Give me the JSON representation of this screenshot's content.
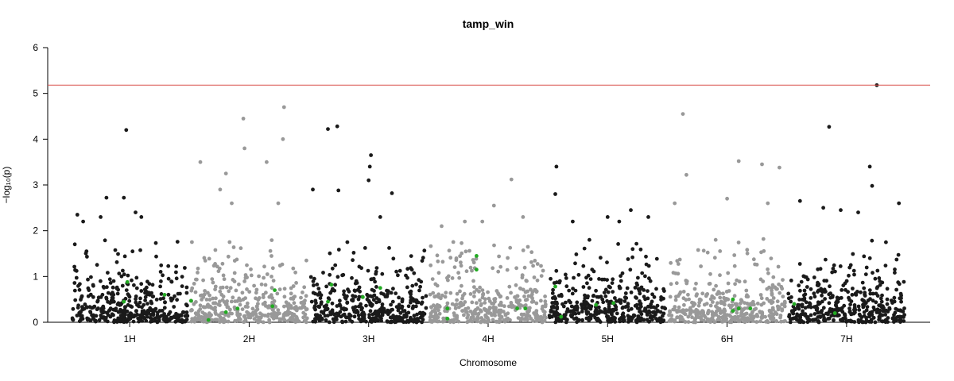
{
  "chart_data": {
    "type": "scatter",
    "title": "tamp_win",
    "xlabel": "Chromosome",
    "ylabel": "−log₁₀(p)",
    "ylim": [
      0,
      6
    ],
    "yticks": [
      0,
      1,
      2,
      3,
      4,
      5,
      6
    ],
    "categories": [
      "1H",
      "2H",
      "3H",
      "4H",
      "5H",
      "6H",
      "7H"
    ],
    "threshold": 5.18,
    "colors": {
      "odd": "#1a1a1a",
      "even": "#999999",
      "highlight": "#22aa22",
      "threshold": "#d9534f"
    },
    "grid": false,
    "series": [
      {
        "category": "1H",
        "peaks": [
          [
            0.05,
            2.35
          ],
          [
            0.1,
            2.2
          ],
          [
            0.3,
            2.72
          ],
          [
            0.45,
            2.72
          ],
          [
            0.47,
            4.2
          ],
          [
            0.55,
            2.4
          ],
          [
            0.6,
            2.3
          ],
          [
            0.25,
            2.3
          ]
        ],
        "highlights": [
          [
            0.45,
            0.45
          ],
          [
            0.48,
            0.88
          ],
          [
            0.8,
            0.6
          ]
        ]
      },
      {
        "category": "2H",
        "peaks": [
          [
            0.08,
            3.5
          ],
          [
            0.25,
            2.9
          ],
          [
            0.3,
            3.25
          ],
          [
            0.45,
            4.45
          ],
          [
            0.46,
            3.8
          ],
          [
            0.65,
            3.5
          ],
          [
            0.8,
            4.7
          ],
          [
            0.79,
            4.0
          ],
          [
            0.75,
            2.6
          ],
          [
            0.35,
            2.6
          ]
        ],
        "highlights": [
          [
            0.0,
            0.47
          ],
          [
            0.15,
            0.05
          ],
          [
            0.3,
            0.22
          ],
          [
            0.4,
            0.3
          ],
          [
            0.7,
            0.35
          ],
          [
            0.72,
            0.7
          ]
        ]
      },
      {
        "category": "3H",
        "peaks": [
          [
            0.02,
            2.9
          ],
          [
            0.15,
            4.22
          ],
          [
            0.23,
            4.28
          ],
          [
            0.24,
            2.88
          ],
          [
            0.52,
            3.65
          ],
          [
            0.51,
            3.4
          ],
          [
            0.5,
            3.1
          ],
          [
            0.6,
            2.3
          ],
          [
            0.7,
            2.82
          ]
        ],
        "highlights": [
          [
            0.15,
            0.45
          ],
          [
            0.18,
            0.82
          ],
          [
            0.45,
            0.55
          ],
          [
            0.6,
            0.75
          ]
        ]
      },
      {
        "category": "4H",
        "peaks": [
          [
            0.1,
            2.1
          ],
          [
            0.3,
            2.2
          ],
          [
            0.55,
            2.55
          ],
          [
            0.7,
            3.12
          ],
          [
            0.8,
            2.3
          ],
          [
            0.45,
            2.2
          ]
        ],
        "highlights": [
          [
            0.15,
            0.3
          ],
          [
            0.15,
            0.08
          ],
          [
            0.4,
            1.45
          ],
          [
            0.4,
            1.15
          ],
          [
            0.75,
            0.3
          ],
          [
            0.82,
            0.3
          ]
        ]
      },
      {
        "category": "5H",
        "peaks": [
          [
            0.05,
            2.8
          ],
          [
            0.06,
            3.4
          ],
          [
            0.2,
            2.2
          ],
          [
            0.5,
            2.3
          ],
          [
            0.6,
            2.2
          ],
          [
            0.7,
            2.45
          ],
          [
            0.85,
            2.3
          ]
        ],
        "highlights": [
          [
            0.05,
            0.78
          ],
          [
            0.1,
            0.12
          ],
          [
            0.4,
            0.38
          ],
          [
            0.55,
            0.42
          ]
        ]
      },
      {
        "category": "6H",
        "peaks": [
          [
            0.05,
            2.6
          ],
          [
            0.12,
            4.55
          ],
          [
            0.15,
            3.22
          ],
          [
            0.5,
            2.7
          ],
          [
            0.6,
            3.52
          ],
          [
            0.8,
            3.45
          ],
          [
            0.85,
            2.6
          ],
          [
            0.95,
            3.38
          ]
        ],
        "highlights": [
          [
            0.55,
            0.5
          ],
          [
            0.55,
            0.25
          ],
          [
            0.6,
            0.3
          ],
          [
            0.7,
            0.3
          ]
        ]
      },
      {
        "category": "7H",
        "peaks": [
          [
            0.1,
            2.65
          ],
          [
            0.35,
            4.27
          ],
          [
            0.3,
            2.5
          ],
          [
            0.45,
            2.45
          ],
          [
            0.6,
            2.4
          ],
          [
            0.7,
            3.4
          ],
          [
            0.72,
            2.98
          ],
          [
            0.76,
            5.18
          ],
          [
            0.95,
            2.6
          ]
        ],
        "highlights": [
          [
            0.05,
            0.4
          ],
          [
            0.4,
            0.2
          ]
        ]
      }
    ]
  }
}
